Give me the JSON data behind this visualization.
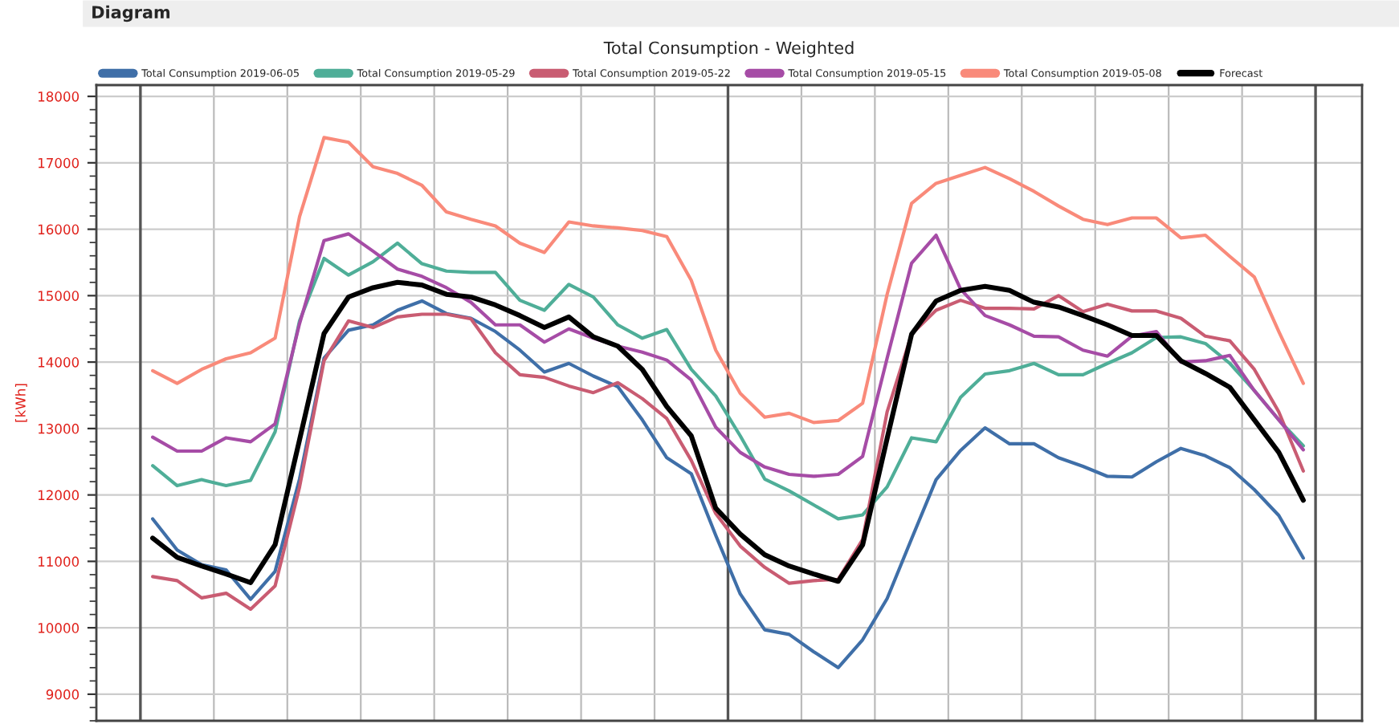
{
  "chart_data": {
    "type": "line",
    "title": "Total Consumption - Weighted",
    "ylabel": "[kWh]",
    "annotations": [
      "Diagram"
    ],
    "categories": [
      null,
      null,
      null,
      null,
      null,
      null,
      null,
      null,
      null,
      null,
      null,
      null,
      null,
      null,
      null,
      null,
      null,
      null,
      null,
      null,
      null,
      null,
      null,
      null,
      null,
      null,
      null,
      null,
      null,
      null,
      null,
      null,
      null,
      null,
      null,
      null,
      null,
      null,
      null,
      null,
      null,
      null,
      null,
      null,
      null,
      null,
      null,
      null
    ],
    "series": [
      {
        "name": "Total Consumption 2019-06-05",
        "color": "#3f6fa8",
        "values": [
          11640,
          11170,
          10950,
          10870,
          10430,
          10850,
          12240,
          14060,
          14480,
          14560,
          14780,
          14920,
          14730,
          14660,
          14460,
          14180,
          13850,
          13980,
          13790,
          13630,
          13130,
          12560,
          12320,
          11390,
          10510,
          9970,
          9900,
          9640,
          9400,
          9820,
          10440,
          11340,
          12230,
          12670,
          13010,
          12770,
          12770,
          12560,
          12430,
          12280,
          12270,
          12500,
          12700,
          12590,
          12410,
          12080,
          11690,
          11050
        ]
      },
      {
        "name": "Total Consumption 2019-05-29",
        "color": "#4fae98",
        "values": [
          12440,
          12140,
          12230,
          12140,
          12220,
          12950,
          14620,
          15560,
          15310,
          15510,
          15790,
          15480,
          15370,
          15350,
          15350,
          14930,
          14780,
          15170,
          14980,
          14560,
          14360,
          14490,
          13890,
          13490,
          12890,
          12240,
          12060,
          11850,
          11640,
          11700,
          12120,
          12860,
          12800,
          13470,
          13820,
          13870,
          13980,
          13810,
          13810,
          13980,
          14140,
          14370,
          14380,
          14280,
          13980,
          13570,
          13130,
          12740
        ]
      },
      {
        "name": "Total Consumption 2019-05-22",
        "color": "#c95c72",
        "values": [
          10770,
          10710,
          10450,
          10520,
          10280,
          10630,
          12120,
          14020,
          14620,
          14520,
          14680,
          14720,
          14720,
          14650,
          14140,
          13810,
          13770,
          13640,
          13540,
          13690,
          13450,
          13150,
          12520,
          11720,
          11230,
          10910,
          10670,
          10710,
          10730,
          11330,
          13250,
          14420,
          14780,
          14930,
          14810,
          14810,
          14800,
          15000,
          14760,
          14870,
          14770,
          14770,
          14660,
          14390,
          14320,
          13890,
          13250,
          12360
        ]
      },
      {
        "name": "Total Consumption 2019-05-15",
        "color": "#a64ca6",
        "values": [
          12870,
          12660,
          12660,
          12860,
          12800,
          13070,
          14580,
          15830,
          15930,
          15670,
          15400,
          15290,
          15120,
          14900,
          14560,
          14560,
          14300,
          14500,
          14360,
          14240,
          14150,
          14030,
          13730,
          13020,
          12640,
          12420,
          12310,
          12280,
          12310,
          12580,
          14060,
          15490,
          15910,
          15100,
          14700,
          14560,
          14390,
          14380,
          14180,
          14090,
          14390,
          14460,
          14000,
          14020,
          14100,
          13570,
          13130,
          12680
        ]
      },
      {
        "name": "Total Consumption 2019-05-08",
        "color": "#f98a7a",
        "values": [
          13870,
          13680,
          13890,
          14050,
          14140,
          14360,
          16190,
          17380,
          17310,
          16940,
          16840,
          16660,
          16260,
          16150,
          16050,
          15790,
          15650,
          16110,
          16050,
          16020,
          15980,
          15890,
          15230,
          14180,
          13530,
          13170,
          13230,
          13090,
          13120,
          13380,
          15020,
          16390,
          16690,
          16810,
          16930,
          16760,
          16570,
          16350,
          16150,
          16070,
          16170,
          16170,
          15870,
          15910,
          15590,
          15280,
          14460,
          13680
        ]
      },
      {
        "name": "Forecast",
        "color": "#000000",
        "values": [
          11350,
          11060,
          10930,
          10810,
          10680,
          11250,
          12830,
          14430,
          14980,
          15120,
          15200,
          15160,
          15020,
          14980,
          14860,
          14700,
          14520,
          14680,
          14380,
          14240,
          13890,
          13330,
          12890,
          11800,
          11410,
          11100,
          10930,
          10810,
          10700,
          11250,
          12850,
          14420,
          14920,
          15080,
          15140,
          15080,
          14900,
          14830,
          14700,
          14560,
          14400,
          14400,
          14020,
          13830,
          13620,
          13130,
          12640,
          11920
        ]
      }
    ],
    "ylim": [
      8600,
      18170
    ],
    "yticks": [
      9000,
      10000,
      11000,
      12000,
      13000,
      14000,
      15000,
      16000,
      17000,
      18000
    ],
    "grid": true,
    "legend": "top",
    "marker": "none",
    "line_style": "solid",
    "tick_labels": "y"
  }
}
